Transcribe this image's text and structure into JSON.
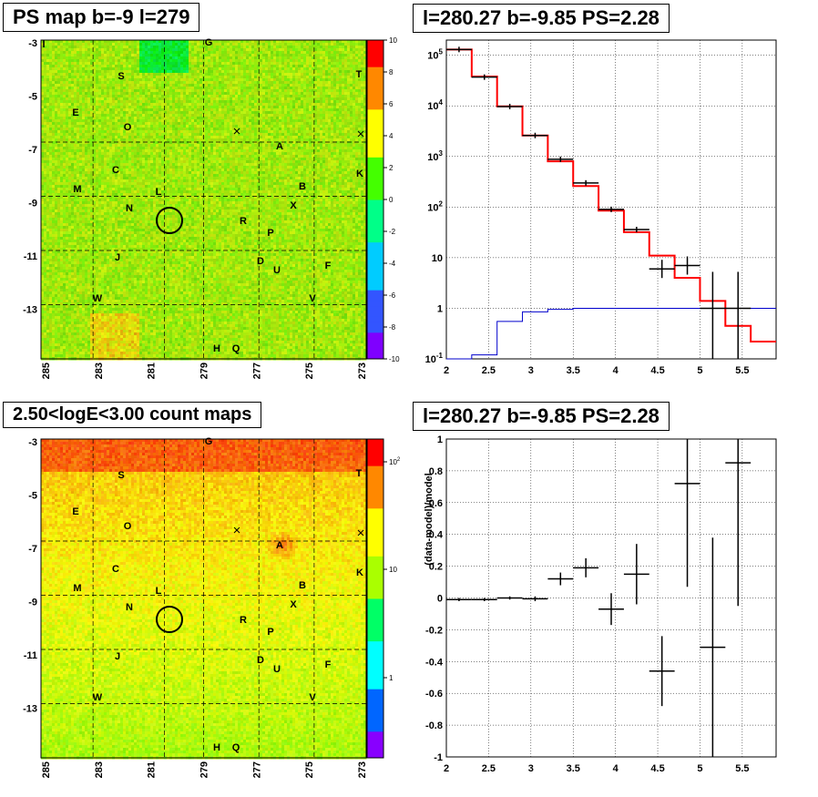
{
  "chart_data": [
    {
      "type": "heatmap",
      "title": "PS map b=-9 l=279",
      "xticks": [
        "285",
        "283",
        "281",
        "279",
        "277",
        "275",
        "273"
      ],
      "yticks": [
        "-3",
        "-5",
        "-7",
        "-9",
        "-11",
        "-13"
      ],
      "colorbar_ticks": [
        "10",
        "8",
        "6",
        "4",
        "2",
        "0",
        "-2",
        "-4",
        "-6",
        "-8",
        "-10"
      ],
      "colormap": [
        "#7f00ff",
        "#3355ff",
        "#00ccff",
        "#00ff88",
        "#44ff00",
        "#ffff00",
        "#ff8800",
        "#ff0000"
      ],
      "sources": [
        "G",
        "S",
        "T",
        "E",
        "O",
        "A",
        "C",
        "K",
        "M",
        "B",
        "L",
        "N",
        "X",
        "R",
        "P",
        "J",
        "D",
        "U",
        "F",
        "W",
        "V",
        "H",
        "Q",
        "I"
      ]
    },
    {
      "type": "step",
      "title": "l=280.27 b=-9.85 PS=2.28",
      "xticks": [
        "2",
        "2.5",
        "3",
        "3.5",
        "4",
        "4.5",
        "5",
        "5.5"
      ],
      "yticks": [
        "10^-1",
        "1",
        "10",
        "10^2",
        "10^3",
        "10^4",
        "10^5"
      ],
      "x_range": [
        2,
        5.9
      ],
      "y_range_log10": [
        -1,
        5.3
      ],
      "bin_edges": [
        2.0,
        2.3,
        2.6,
        2.9,
        3.2,
        3.5,
        3.8,
        4.1,
        4.4,
        4.7,
        5.0,
        5.3,
        5.6,
        5.9
      ],
      "series": [
        {
          "color": "#ff0000",
          "values": [
            130000,
            38000,
            9800,
            2600,
            800,
            260,
            85,
            32,
            11,
            4,
            1.4,
            0.45,
            0.22
          ]
        },
        {
          "color": "#0000cc",
          "values": [
            0.1,
            0.12,
            0.55,
            0.85,
            0.95,
            1.0,
            1.0,
            1.0,
            1.0,
            1.0,
            1.0,
            1.0,
            1.0
          ]
        }
      ],
      "data_points": [
        {
          "x": 2.15,
          "y": 130000
        },
        {
          "x": 2.45,
          "y": 37000
        },
        {
          "x": 2.75,
          "y": 9700
        },
        {
          "x": 3.05,
          "y": 2600
        },
        {
          "x": 3.35,
          "y": 880
        },
        {
          "x": 3.65,
          "y": 300
        },
        {
          "x": 3.95,
          "y": 90
        },
        {
          "x": 4.25,
          "y": 36
        },
        {
          "x": 4.55,
          "y": 6
        },
        {
          "x": 4.85,
          "y": 7
        },
        {
          "x": 5.15,
          "y": 1
        },
        {
          "x": 5.45,
          "y": 1
        }
      ]
    },
    {
      "type": "heatmap",
      "title": "2.50<logE<3.00 count maps",
      "xticks": [
        "285",
        "283",
        "281",
        "279",
        "277",
        "275",
        "273"
      ],
      "yticks": [
        "-3",
        "-5",
        "-7",
        "-9",
        "-11",
        "-13"
      ],
      "colorbar_ticks": [
        "10^2",
        "10",
        "1"
      ],
      "colormap": [
        "#8800ff",
        "#0066ff",
        "#00ffff",
        "#00ff66",
        "#aaff00",
        "#ffff00",
        "#ff8800",
        "#ff0000"
      ],
      "sources": [
        "G",
        "S",
        "T",
        "E",
        "O",
        "A",
        "C",
        "K",
        "M",
        "B",
        "L",
        "N",
        "X",
        "R",
        "P",
        "J",
        "D",
        "U",
        "F",
        "W",
        "V",
        "H",
        "Q"
      ]
    },
    {
      "type": "scatter",
      "title": "l=280.27 b=-9.85 PS=2.28",
      "ylabel": "(data-model)/model",
      "xticks": [
        "2",
        "2.5",
        "3",
        "3.5",
        "4",
        "4.5",
        "5",
        "5.5"
      ],
      "yticks": [
        "-1",
        "-0.8",
        "-0.6",
        "-0.4",
        "-0.2",
        "0",
        "0.2",
        "0.4",
        "0.6",
        "0.8",
        "1"
      ],
      "x_range": [
        2,
        5.9
      ],
      "ylim": [
        -1,
        1
      ],
      "points": [
        {
          "x": 2.15,
          "y": -0.01,
          "xerr": 0.15,
          "yerr": 0.01
        },
        {
          "x": 2.45,
          "y": -0.01,
          "xerr": 0.15,
          "yerr": 0.01
        },
        {
          "x": 2.75,
          "y": 0.0,
          "xerr": 0.15,
          "yerr": 0.01
        },
        {
          "x": 3.05,
          "y": -0.005,
          "xerr": 0.15,
          "yerr": 0.015
        },
        {
          "x": 3.35,
          "y": 0.12,
          "xerr": 0.15,
          "yerr": 0.04
        },
        {
          "x": 3.65,
          "y": 0.19,
          "xerr": 0.15,
          "yerr": 0.06
        },
        {
          "x": 3.95,
          "y": -0.07,
          "xerr": 0.15,
          "yerr": 0.1
        },
        {
          "x": 4.25,
          "y": 0.15,
          "xerr": 0.15,
          "yerr": 0.19
        },
        {
          "x": 4.55,
          "y": -0.46,
          "xerr": 0.15,
          "yerr": 0.22
        },
        {
          "x": 4.85,
          "y": 0.72,
          "xerr": 0.15,
          "yerr": 0.65
        },
        {
          "x": 5.15,
          "y": -0.31,
          "xerr": 0.15,
          "yerr": 0.69
        },
        {
          "x": 5.45,
          "y": 0.85,
          "xerr": 0.15,
          "yerr": 0.9
        }
      ]
    }
  ]
}
